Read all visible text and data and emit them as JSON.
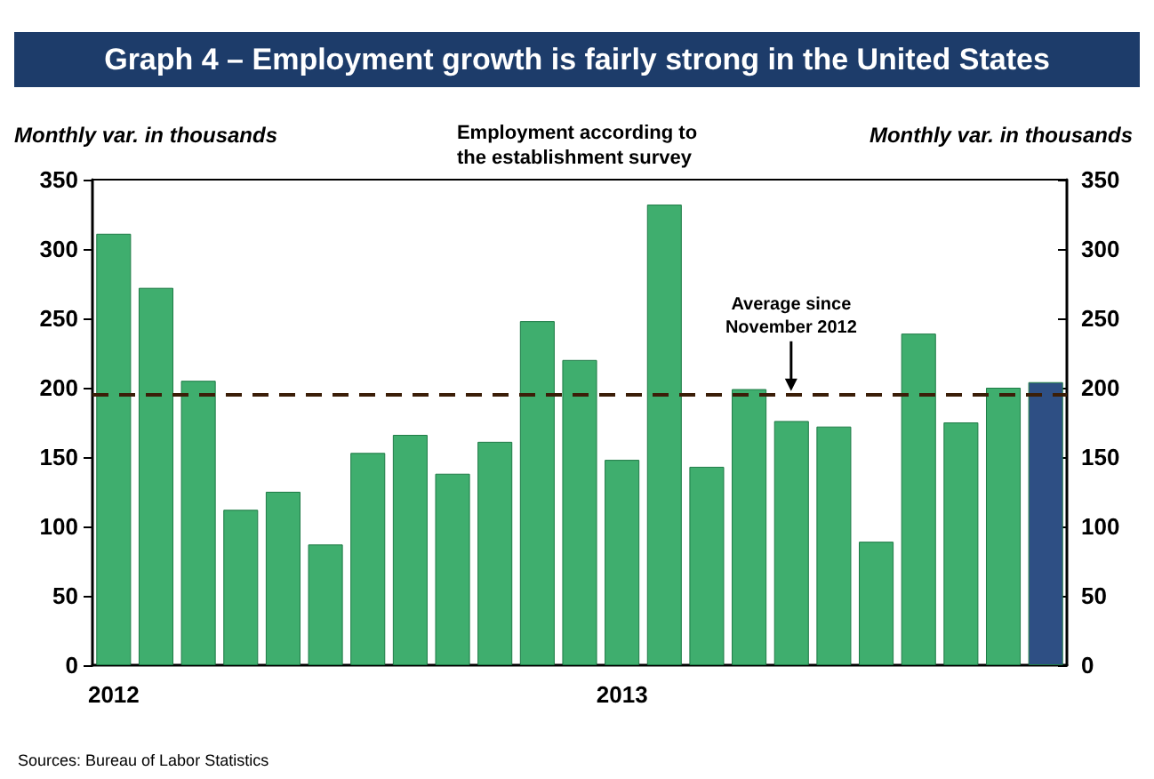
{
  "chart_data": {
    "type": "bar",
    "title": "Graph 4 – Employment growth is fairly strong in the United States",
    "subtitle": "Employment according to the establishment survey",
    "ylabel": "Monthly var. in thousands",
    "y2label": "Monthly var. in thousands",
    "categories": [
      "2012",
      null,
      null,
      null,
      null,
      null,
      null,
      null,
      null,
      null,
      null,
      null,
      "2013",
      null,
      null,
      null,
      null,
      null,
      null,
      null,
      null,
      null,
      null
    ],
    "values": [
      311,
      272,
      205,
      112,
      125,
      87,
      153,
      166,
      138,
      161,
      248,
      220,
      148,
      332,
      143,
      199,
      176,
      172,
      89,
      239,
      175,
      200,
      204
    ],
    "colors": [
      "#3fae6e",
      "#3fae6e",
      "#3fae6e",
      "#3fae6e",
      "#3fae6e",
      "#3fae6e",
      "#3fae6e",
      "#3fae6e",
      "#3fae6e",
      "#3fae6e",
      "#3fae6e",
      "#3fae6e",
      "#3fae6e",
      "#3fae6e",
      "#3fae6e",
      "#3fae6e",
      "#3fae6e",
      "#3fae6e",
      "#3fae6e",
      "#3fae6e",
      "#3fae6e",
      "#3fae6e",
      "#2e4f84"
    ],
    "ylim": [
      0,
      350
    ],
    "yticks": [
      0,
      50,
      100,
      150,
      200,
      250,
      300,
      350
    ],
    "y2lim": [
      0,
      350
    ],
    "y2ticks": [
      0,
      50,
      100,
      150,
      200,
      250,
      300,
      350
    ],
    "ref_lines": [
      {
        "axis": "y",
        "value": 195,
        "label": "Average since November 2012",
        "color": "#3b1e08",
        "line_style": "dashed"
      }
    ],
    "annotations": [
      "Sources: Bureau of Labor Statistics"
    ],
    "grid": false
  }
}
